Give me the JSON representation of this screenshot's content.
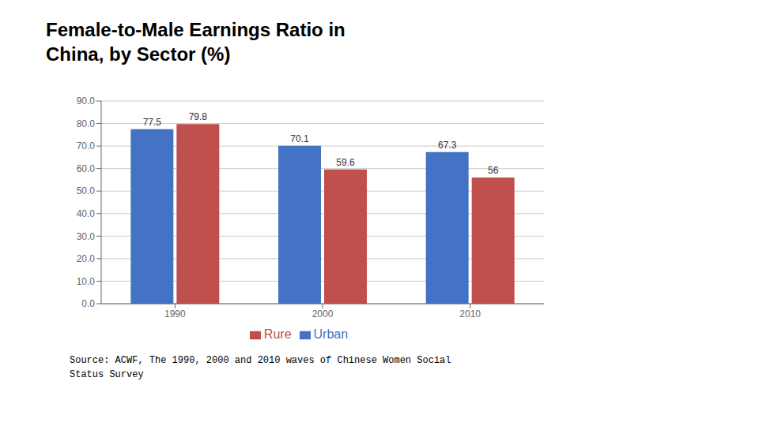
{
  "chart_data": {
    "type": "bar",
    "title": "Female-to-Male Earnings Ratio in\nChina, by Sector (%)",
    "categories": [
      "1990",
      "2000",
      "2010"
    ],
    "series": [
      {
        "name": "Urban",
        "color": "#4472C4",
        "values": [
          77.5,
          70.1,
          67.3
        ]
      },
      {
        "name": "Rure",
        "color": "#C0504D",
        "values": [
          79.8,
          59.6,
          56.0
        ]
      }
    ],
    "ylim": [
      0,
      90
    ],
    "yticks": [
      {
        "value": 0,
        "label": "0.0"
      },
      {
        "value": 10,
        "label": "10.0"
      },
      {
        "value": 20,
        "label": "20.0"
      },
      {
        "value": 30,
        "label": "30.0"
      },
      {
        "value": 40,
        "label": "40.0"
      },
      {
        "value": 50,
        "label": "50.0"
      },
      {
        "value": 60,
        "label": "60.0"
      },
      {
        "value": 70,
        "label": "70.0"
      },
      {
        "value": 80,
        "label": "80.0"
      },
      {
        "value": 90,
        "label": "90.0"
      }
    ],
    "grid": true,
    "legend": "bottom",
    "data_labels": true,
    "annotations": [
      "Source: ACWF, The 1990, 2000 and 2010 waves of Chinese Women Social\nStatus Survey"
    ]
  }
}
